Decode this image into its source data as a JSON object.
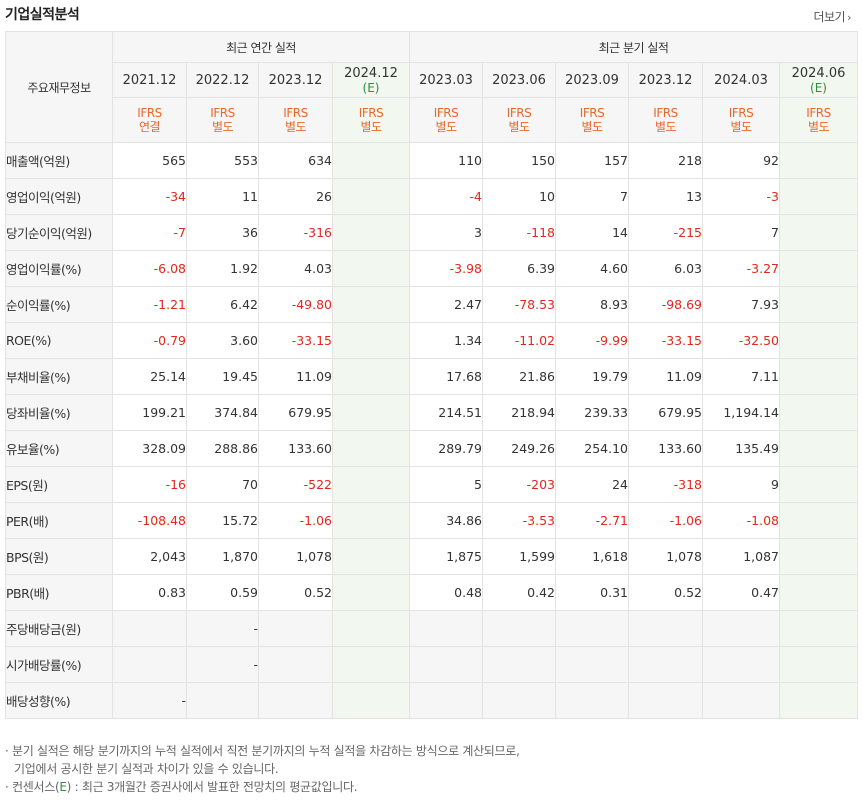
{
  "title": "기업실적분석",
  "more_label": "더보기",
  "label_header": "주요재무정보",
  "groups": {
    "annual": "최근 연간 실적",
    "quarterly": "최근 분기 실적"
  },
  "periods": [
    {
      "label": "2021.12",
      "est": "",
      "ifrs1": "IFRS",
      "ifrs2": "연결"
    },
    {
      "label": "2022.12",
      "est": "",
      "ifrs1": "IFRS",
      "ifrs2": "별도"
    },
    {
      "label": "2023.12",
      "est": "",
      "ifrs1": "IFRS",
      "ifrs2": "별도"
    },
    {
      "label": "2024.12",
      "est": "(E)",
      "ifrs1": "IFRS",
      "ifrs2": "별도"
    },
    {
      "label": "2023.03",
      "est": "",
      "ifrs1": "IFRS",
      "ifrs2": "별도"
    },
    {
      "label": "2023.06",
      "est": "",
      "ifrs1": "IFRS",
      "ifrs2": "별도"
    },
    {
      "label": "2023.09",
      "est": "",
      "ifrs1": "IFRS",
      "ifrs2": "별도"
    },
    {
      "label": "2023.12",
      "est": "",
      "ifrs1": "IFRS",
      "ifrs2": "별도"
    },
    {
      "label": "2024.03",
      "est": "",
      "ifrs1": "IFRS",
      "ifrs2": "별도"
    },
    {
      "label": "2024.06",
      "est": "(E)",
      "ifrs1": "IFRS",
      "ifrs2": "별도"
    }
  ],
  "rows": [
    {
      "label": "매출액(억원)",
      "values": [
        "565",
        "553",
        "634",
        "",
        "110",
        "150",
        "157",
        "218",
        "92",
        ""
      ]
    },
    {
      "label": "영업이익(억원)",
      "values": [
        "-34",
        "11",
        "26",
        "",
        "-4",
        "10",
        "7",
        "13",
        "-3",
        ""
      ]
    },
    {
      "label": "당기순이익(억원)",
      "values": [
        "-7",
        "36",
        "-316",
        "",
        "3",
        "-118",
        "14",
        "-215",
        "7",
        ""
      ]
    },
    {
      "label": "영업이익률(%)",
      "values": [
        "-6.08",
        "1.92",
        "4.03",
        "",
        "-3.98",
        "6.39",
        "4.60",
        "6.03",
        "-3.27",
        ""
      ]
    },
    {
      "label": "순이익률(%)",
      "values": [
        "-1.21",
        "6.42",
        "-49.80",
        "",
        "2.47",
        "-78.53",
        "8.93",
        "-98.69",
        "7.93",
        ""
      ]
    },
    {
      "label": "ROE(%)",
      "values": [
        "-0.79",
        "3.60",
        "-33.15",
        "",
        "1.34",
        "-11.02",
        "-9.99",
        "-33.15",
        "-32.50",
        ""
      ]
    },
    {
      "label": "부채비율(%)",
      "values": [
        "25.14",
        "19.45",
        "11.09",
        "",
        "17.68",
        "21.86",
        "19.79",
        "11.09",
        "7.11",
        ""
      ]
    },
    {
      "label": "당좌비율(%)",
      "values": [
        "199.21",
        "374.84",
        "679.95",
        "",
        "214.51",
        "218.94",
        "239.33",
        "679.95",
        "1,194.14",
        ""
      ]
    },
    {
      "label": "유보율(%)",
      "values": [
        "328.09",
        "288.86",
        "133.60",
        "",
        "289.79",
        "249.26",
        "254.10",
        "133.60",
        "135.49",
        ""
      ]
    },
    {
      "label": "EPS(원)",
      "values": [
        "-16",
        "70",
        "-522",
        "",
        "5",
        "-203",
        "24",
        "-318",
        "9",
        ""
      ]
    },
    {
      "label": "PER(배)",
      "values": [
        "-108.48",
        "15.72",
        "-1.06",
        "",
        "34.86",
        "-3.53",
        "-2.71",
        "-1.06",
        "-1.08",
        ""
      ]
    },
    {
      "label": "BPS(원)",
      "values": [
        "2,043",
        "1,870",
        "1,078",
        "",
        "1,875",
        "1,599",
        "1,618",
        "1,078",
        "1,087",
        ""
      ]
    },
    {
      "label": "PBR(배)",
      "values": [
        "0.83",
        "0.59",
        "0.52",
        "",
        "0.48",
        "0.42",
        "0.31",
        "0.52",
        "0.47",
        ""
      ]
    },
    {
      "label": "주당배당금(원)",
      "values": [
        "",
        "-",
        "",
        "",
        "",
        "",
        "",
        "",
        "",
        ""
      ]
    },
    {
      "label": "시가배당률(%)",
      "values": [
        "",
        "-",
        "",
        "",
        "",
        "",
        "",
        "",
        "",
        ""
      ]
    },
    {
      "label": "배당성향(%)",
      "values": [
        "-",
        "",
        "",
        "",
        "",
        "",
        "",
        "",
        "",
        ""
      ]
    }
  ],
  "notes": {
    "line1": "분기 실적은 해당 분기까지의 누적 실적에서 직전 분기까지의 누적 실적을 차감하는 방식으로 계산되므로,",
    "line2": "기업에서 공시한 분기 실적과 차이가 있을 수 있습니다.",
    "line3_pre": "컨센서스(",
    "line3_e": "E",
    "line3_post": ") : 최근 3개월간 증권사에서 발표한 전망치의 평균값입니다."
  }
}
